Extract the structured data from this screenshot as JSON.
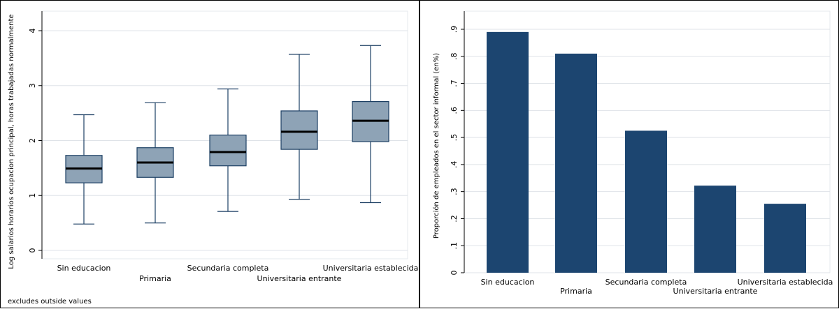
{
  "chart_data": [
    {
      "type": "box",
      "title": "",
      "xlabel": "",
      "ylabel": "Log salarios horarios ocupacion principal, horas trabajadas normalmente",
      "ylim": [
        0,
        4.2
      ],
      "yticks": [
        0,
        1,
        2,
        3,
        4
      ],
      "ytick_labels": [
        "0",
        "1",
        "2",
        "3",
        "4"
      ],
      "grid": true,
      "categories": [
        "Sin educacion",
        "Primaria",
        "Secundaria completa",
        "Universitaria entrante",
        "Universitaria establecida"
      ],
      "boxes": [
        {
          "category": "Sin educacion",
          "whisker_low": 0.48,
          "q1": 1.23,
          "median": 1.49,
          "q3": 1.73,
          "whisker_high": 2.47
        },
        {
          "category": "Primaria",
          "whisker_low": 0.5,
          "q1": 1.33,
          "median": 1.6,
          "q3": 1.87,
          "whisker_high": 2.69
        },
        {
          "category": "Secundaria completa",
          "whisker_low": 0.71,
          "q1": 1.54,
          "median": 1.79,
          "q3": 2.1,
          "whisker_high": 2.94
        },
        {
          "category": "Universitaria entrante",
          "whisker_low": 0.93,
          "q1": 1.84,
          "median": 2.16,
          "q3": 2.54,
          "whisker_high": 3.57
        },
        {
          "category": "Universitaria establecida",
          "whisker_low": 0.87,
          "q1": 1.98,
          "median": 2.36,
          "q3": 2.71,
          "whisker_high": 3.73
        }
      ],
      "note": "excludes outside values",
      "colors": {
        "box_fill": "#8ea3b6",
        "box_edge": "#1c3f63",
        "median": "#000000",
        "grid": "#dfe3e8",
        "plot_bg": "#ffffff"
      }
    },
    {
      "type": "bar",
      "title": "",
      "xlabel": "",
      "ylabel": "Proporción de empleados en el sector informal (en%)",
      "ylim": [
        0,
        0.95
      ],
      "yticks": [
        0,
        0.1,
        0.2,
        0.3,
        0.4,
        0.5,
        0.6,
        0.7,
        0.8,
        0.9
      ],
      "ytick_labels": [
        "0",
        ".1",
        ".2",
        ".3",
        ".4",
        ".5",
        ".6",
        ".7",
        ".8",
        ".9"
      ],
      "grid": true,
      "categories": [
        "Sin educacion",
        "Primaria",
        "Secundaria completa",
        "Universitaria entrante",
        "Universitaria establecida"
      ],
      "values": [
        0.89,
        0.81,
        0.525,
        0.322,
        0.255
      ],
      "colors": {
        "bar": "#1c4570",
        "grid": "#dfe3e8",
        "plot_bg": "#ffffff"
      }
    }
  ]
}
